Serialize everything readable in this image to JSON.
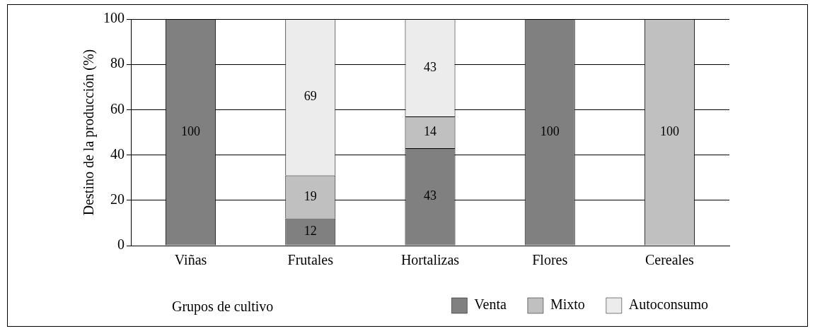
{
  "chart_data": {
    "type": "bar",
    "stacked": true,
    "ylabel": "Destino de la producción (%)",
    "xlabel": "Grupos de cultivo",
    "categories": [
      "Viñas",
      "Frutales",
      "Hortalizas",
      "Flores",
      "Cereales"
    ],
    "series": [
      {
        "name": "Venta",
        "color": "#808080",
        "values": [
          100,
          12,
          43,
          100,
          0
        ],
        "value_labels": [
          "100",
          "12",
          "43",
          "100",
          null
        ]
      },
      {
        "name": "Mixto",
        "color": "#c0c0c0",
        "values": [
          0,
          19,
          14,
          0,
          100
        ],
        "value_labels": [
          null,
          "19",
          "14",
          null,
          "100"
        ]
      },
      {
        "name": "Autoconsumo",
        "color": "#ececec",
        "values": [
          0,
          69,
          43,
          0,
          0
        ],
        "value_labels": [
          null,
          "69",
          "43",
          null,
          null
        ]
      }
    ],
    "ylim": [
      0,
      100
    ],
    "yticks": [
      0,
      20,
      40,
      60,
      80,
      100
    ],
    "grid": "y",
    "legend": "bottom right"
  }
}
